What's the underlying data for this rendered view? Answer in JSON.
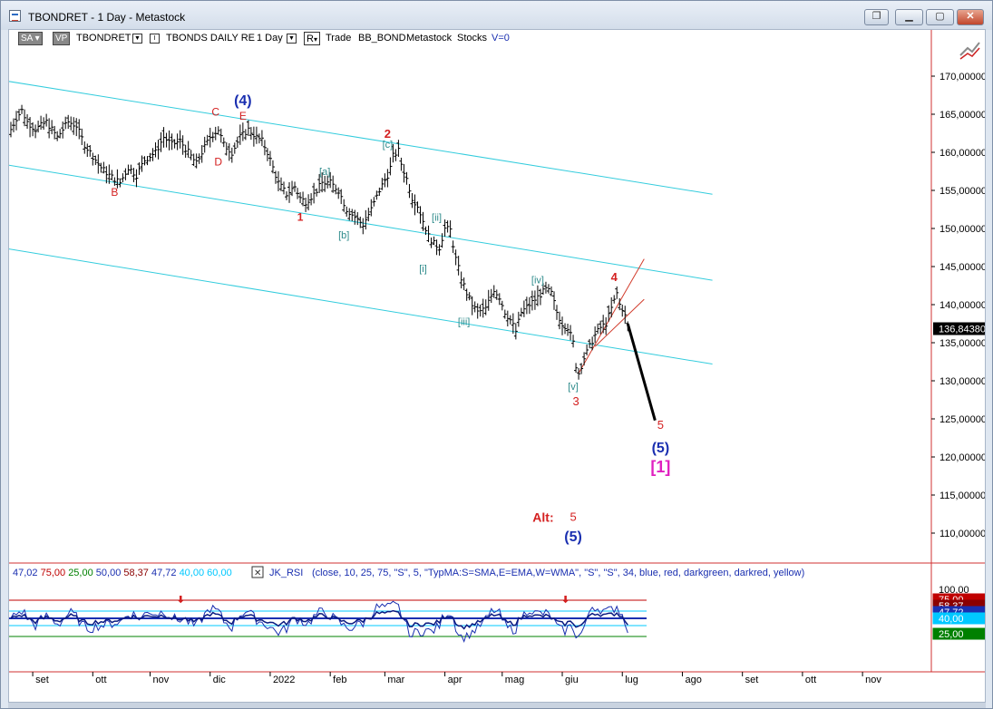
{
  "window": {
    "title": "TBONDRET - 1 Day - Metastock"
  },
  "toolbar": {
    "sa": "SA",
    "vp": "VP",
    "symbol": "TBONDRET",
    "name": "TBONDS DAILY RE",
    "period": "1 Day",
    "r": "R",
    "trade": "Trade",
    "bb": "BB_BOND",
    "source": "Metastock",
    "stocks": "Stocks",
    "v": "V=0"
  },
  "indicator": {
    "values": [
      "47,02",
      "75,00",
      "25,00",
      "50,00",
      "58,37",
      "47,72",
      "40,00",
      "60,00"
    ],
    "value_colors": [
      "#1a2fb0",
      "#c00000",
      "#008000",
      "#1a2fb0",
      "#8b0000",
      "#1a2fb0",
      "#00c8ff",
      "#00c8ff"
    ],
    "name": "JK_RSI",
    "params": "(close,  10,  25,  75,  \"S\",  5,  \"TypMA:S=SMA,E=EMA,W=WMA\",  \"S\",  \"S\",  34,  blue,  red,  darkgreen,  darkred,  yellow)",
    "axis_labels": [
      {
        "text": "100,00",
        "color": "#000000",
        "bg": "#ffffff"
      },
      {
        "text": "75,00",
        "color": "#ffffff",
        "bg": "#c00000"
      },
      {
        "text": "58,37",
        "color": "#ffffff",
        "bg": "#8b0000"
      },
      {
        "text": "47,72",
        "color": "#ffffff",
        "bg": "#1a2fb0"
      },
      {
        "text": "40,00",
        "color": "#ffffff",
        "bg": "#00c8ff"
      },
      {
        "text": "25,00",
        "color": "#ffffff",
        "bg": "#008000"
      }
    ]
  },
  "chart_data": {
    "type": "ohlc",
    "price_axis": {
      "min": 107,
      "max": 174,
      "ticks": [
        "170,00000",
        "165,00000",
        "160,00000",
        "155,00000",
        "150,00000",
        "145,00000",
        "140,00000",
        "135,00000",
        "130,00000",
        "125,00000",
        "120,00000",
        "115,00000",
        "110,00000"
      ],
      "tick_values": [
        170,
        165,
        160,
        155,
        150,
        145,
        140,
        135,
        130,
        125,
        120,
        115,
        110
      ],
      "last_price": "136,84380",
      "last_value": 136.8438
    },
    "time_axis": {
      "labels": [
        "set",
        "ott",
        "nov",
        "dic",
        "2022",
        "feb",
        "mar",
        "apr",
        "mag",
        "giu",
        "lug",
        "ago",
        "set",
        "ott",
        "nov"
      ],
      "label_index": [
        8,
        30,
        51,
        73,
        95,
        117,
        137,
        159,
        180,
        202,
        224,
        246,
        268,
        290,
        312
      ]
    },
    "price_path": [
      [
        0,
        163
      ],
      [
        2,
        164.5
      ],
      [
        4,
        165.5
      ],
      [
        6,
        164
      ],
      [
        9,
        163
      ],
      [
        13,
        164
      ],
      [
        17,
        162
      ],
      [
        21,
        164
      ],
      [
        24,
        163.5
      ],
      [
        27,
        161
      ],
      [
        30,
        159.5
      ],
      [
        33,
        158
      ],
      [
        36,
        157
      ],
      [
        40,
        156
      ],
      [
        43,
        158
      ],
      [
        46,
        157
      ],
      [
        49,
        159
      ],
      [
        53,
        160
      ],
      [
        56,
        162
      ],
      [
        59,
        161
      ],
      [
        62,
        161.5
      ],
      [
        65,
        160
      ],
      [
        68,
        158.5
      ],
      [
        70,
        160
      ],
      [
        73,
        162
      ],
      [
        76,
        163
      ],
      [
        78,
        161
      ],
      [
        81,
        160
      ],
      [
        84,
        162
      ],
      [
        87,
        163
      ],
      [
        90,
        162
      ],
      [
        92,
        161.5
      ],
      [
        94,
        160
      ],
      [
        96,
        158
      ],
      [
        98,
        156
      ],
      [
        101,
        154.5
      ],
      [
        104,
        155.5
      ],
      [
        106,
        154
      ],
      [
        108,
        153.5
      ],
      [
        111,
        154.5
      ],
      [
        114,
        156
      ],
      [
        117,
        156
      ],
      [
        120,
        155
      ],
      [
        123,
        152.5
      ],
      [
        126,
        151.5
      ],
      [
        129,
        150.5
      ],
      [
        132,
        152.5
      ],
      [
        135,
        155
      ],
      [
        138,
        157
      ],
      [
        139,
        158
      ],
      [
        140,
        159.5
      ],
      [
        142,
        160.2
      ],
      [
        143,
        158.5
      ],
      [
        145,
        156.5
      ],
      [
        147,
        154
      ],
      [
        149,
        153
      ],
      [
        151,
        151
      ],
      [
        153,
        149
      ],
      [
        155,
        148
      ],
      [
        157,
        147.5
      ],
      [
        159,
        150
      ],
      [
        161,
        149.8
      ],
      [
        163,
        146
      ],
      [
        165,
        143.5
      ],
      [
        167,
        141.5
      ],
      [
        169,
        140
      ],
      [
        171,
        139
      ],
      [
        174,
        139.5
      ],
      [
        177,
        142
      ],
      [
        179,
        141
      ],
      [
        181,
        139
      ],
      [
        183,
        138
      ],
      [
        185,
        136.5
      ],
      [
        187,
        139
      ],
      [
        190,
        140
      ],
      [
        193,
        141
      ],
      [
        196,
        142
      ],
      [
        198,
        141.5
      ],
      [
        200,
        139
      ],
      [
        202,
        137.5
      ],
      [
        204,
        137
      ],
      [
        206,
        135
      ],
      [
        207,
        132
      ],
      [
        208,
        131
      ],
      [
        210,
        133
      ],
      [
        212,
        134.5
      ],
      [
        214,
        136
      ],
      [
        216,
        137
      ],
      [
        218,
        137.5
      ],
      [
        220,
        139.5
      ],
      [
        222,
        141.5
      ],
      [
        223,
        140
      ],
      [
        224,
        139.5
      ],
      [
        225,
        138.5
      ],
      [
        226,
        137
      ]
    ],
    "ohlc_range": [
      0,
      226
    ],
    "projection": [
      [
        226,
        137.5
      ],
      [
        236,
        124.8
      ]
    ],
    "channels": [
      {
        "points": [
          [
            -4,
            169.5
          ],
          [
            257,
            154.5
          ]
        ],
        "color": "#33ccdd"
      },
      {
        "points": [
          [
            -4,
            158.5
          ],
          [
            257,
            143.2
          ]
        ],
        "color": "#33ccdd"
      },
      {
        "points": [
          [
            -4,
            147.5
          ],
          [
            257,
            132.2
          ]
        ],
        "color": "#33ccdd"
      },
      {
        "points": [
          [
            208,
            131
          ],
          [
            232,
            146
          ]
        ],
        "color": "#d23c2c"
      },
      {
        "points": [
          [
            214,
            134.5
          ],
          [
            232,
            140.7
          ]
        ],
        "color": "#d23c2c"
      }
    ],
    "annotations": [
      {
        "text": "(4)",
        "x": 85,
        "y": 166.2,
        "color": "#1a2fb0",
        "size": 16,
        "bold": true
      },
      {
        "text": "C",
        "x": 75,
        "y": 164.8,
        "color": "#d42020",
        "size": 12
      },
      {
        "text": "E",
        "x": 85,
        "y": 164.3,
        "color": "#d42020",
        "size": 12
      },
      {
        "text": "D",
        "x": 76,
        "y": 158.3,
        "color": "#d42020",
        "size": 12
      },
      {
        "text": "B",
        "x": 38,
        "y": 154.3,
        "color": "#d42020",
        "size": 12
      },
      {
        "text": "2",
        "x": 138,
        "y": 161.9,
        "color": "#d42020",
        "size": 13,
        "bold": true
      },
      {
        "text": "[c]",
        "x": 138,
        "y": 160.6,
        "color": "#2e8b8b",
        "size": 11
      },
      {
        "text": "[a]",
        "x": 115,
        "y": 157.0,
        "color": "#2e8b8b",
        "size": 11
      },
      {
        "text": "1",
        "x": 106,
        "y": 151.0,
        "color": "#d42020",
        "size": 12,
        "bold": true
      },
      {
        "text": "[b]",
        "x": 122,
        "y": 148.7,
        "color": "#2e8b8b",
        "size": 11
      },
      {
        "text": "[ii]",
        "x": 156,
        "y": 151.0,
        "color": "#2e8b8b",
        "size": 11
      },
      {
        "text": "[i]",
        "x": 151,
        "y": 144.3,
        "color": "#2e8b8b",
        "size": 11
      },
      {
        "text": "[iv]",
        "x": 193,
        "y": 142.8,
        "color": "#2e8b8b",
        "size": 11
      },
      {
        "text": "4",
        "x": 221,
        "y": 143.1,
        "color": "#d42020",
        "size": 13,
        "bold": true
      },
      {
        "text": "[iii]",
        "x": 166,
        "y": 137.3,
        "color": "#2e8b8b",
        "size": 11
      },
      {
        "text": "[v]",
        "x": 206,
        "y": 128.8,
        "color": "#2e8b8b",
        "size": 11
      },
      {
        "text": "3",
        "x": 207,
        "y": 126.8,
        "color": "#d42020",
        "size": 13
      },
      {
        "text": "5",
        "x": 238,
        "y": 123.7,
        "color": "#d42020",
        "size": 13
      },
      {
        "text": "(5)",
        "x": 238,
        "y": 120.6,
        "color": "#1a2fb0",
        "size": 16,
        "bold": true
      },
      {
        "text": "[1]",
        "x": 238,
        "y": 118.0,
        "color": "#e020c0",
        "size": 18,
        "bold": true
      },
      {
        "text": "Alt:",
        "x": 195,
        "y": 111.5,
        "color": "#d42020",
        "size": 14,
        "bold": true
      },
      {
        "text": "5",
        "x": 206,
        "y": 111.6,
        "color": "#d42020",
        "size": 13
      },
      {
        "text": "(5)",
        "x": 206,
        "y": 108.9,
        "color": "#1a2fb0",
        "size": 16,
        "bold": true
      }
    ]
  }
}
